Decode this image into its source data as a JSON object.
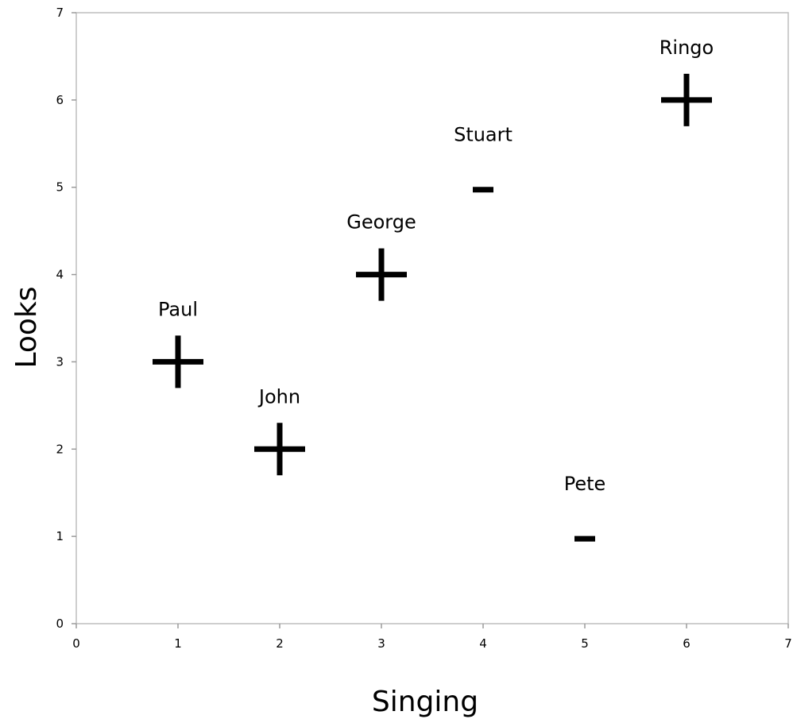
{
  "chart_data": {
    "type": "scatter",
    "xlabel": "Singing",
    "ylabel": "Looks",
    "xlim": [
      0,
      7
    ],
    "ylim": [
      0,
      7
    ],
    "xticks": [
      0,
      1,
      2,
      3,
      4,
      5,
      6,
      7
    ],
    "yticks": [
      0,
      1,
      2,
      3,
      4,
      5,
      6,
      7
    ],
    "grid": false,
    "points": [
      {
        "label": "Paul",
        "x": 1,
        "y": 3,
        "marker": "plus"
      },
      {
        "label": "John",
        "x": 2,
        "y": 2,
        "marker": "plus"
      },
      {
        "label": "George",
        "x": 3,
        "y": 4,
        "marker": "plus"
      },
      {
        "label": "Stuart",
        "x": 4,
        "y": 5,
        "marker": "minus"
      },
      {
        "label": "Pete",
        "x": 5,
        "y": 1,
        "marker": "minus"
      },
      {
        "label": "Ringo",
        "x": 6,
        "y": 6,
        "marker": "plus"
      }
    ],
    "marker_color": "#000000"
  }
}
